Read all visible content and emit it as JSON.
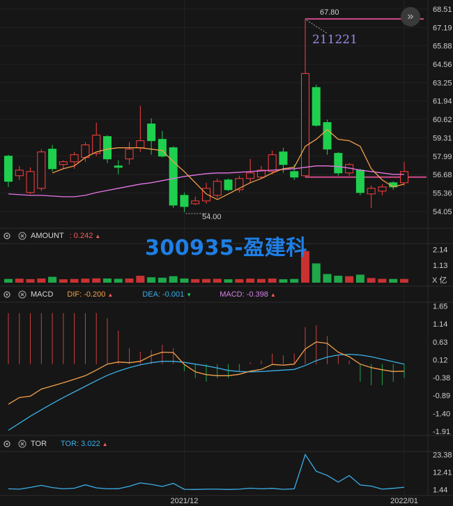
{
  "watermark": "300935-盈建科",
  "panels": {
    "amount": {
      "name": "AMOUNT",
      "value": ": 0.242",
      "unit": "X 亿"
    },
    "macd": {
      "name": "MACD",
      "dif": "DIF: -0.200",
      "dea": "DEA: -0.001",
      "macd": "MACD: -0.398"
    },
    "tor": {
      "name": "TOR",
      "value": "TOR: 3.022"
    }
  },
  "annotations": {
    "high_price": "67.80",
    "low_price": "54.00",
    "date_label": "211221"
  },
  "x_labels": [
    "2021/12",
    "2022/01"
  ],
  "icons": {
    "settings": "gear-icon",
    "close": "close-icon",
    "fast_forward": "double-chevron-right-icon"
  },
  "colors": {
    "up": "#ff4040",
    "down": "#1fd04f",
    "ma5": "#f5a04a",
    "ma20": "#e676e6",
    "dif": "#f5a04a",
    "dea": "#3bb0e8",
    "tor": "#3bb0e8",
    "ref_line": "#d04a8a"
  },
  "chart_data": [
    {
      "type": "candlestick",
      "title": "",
      "y_ticks": [
        68.51,
        67.19,
        65.88,
        64.56,
        63.25,
        61.94,
        60.62,
        59.31,
        57.99,
        56.68,
        55.36,
        54.05
      ],
      "ylim": [
        53.3,
        68.9
      ],
      "candles": [
        {
          "o": 58.0,
          "c": 56.2,
          "h": 58.1,
          "l": 55.8
        },
        {
          "o": 56.6,
          "c": 57.0,
          "h": 57.3,
          "l": 56.3
        },
        {
          "o": 55.4,
          "c": 56.9,
          "h": 57.2,
          "l": 55.3
        },
        {
          "o": 55.7,
          "c": 58.3,
          "h": 58.5,
          "l": 55.5
        },
        {
          "o": 58.5,
          "c": 57.1,
          "h": 58.8,
          "l": 56.9
        },
        {
          "o": 57.4,
          "c": 57.6,
          "h": 57.7,
          "l": 57.1
        },
        {
          "o": 57.6,
          "c": 58.1,
          "h": 58.3,
          "l": 57.1
        },
        {
          "o": 57.9,
          "c": 58.8,
          "h": 59.0,
          "l": 57.6
        },
        {
          "o": 58.2,
          "c": 59.5,
          "h": 60.4,
          "l": 58.0
        },
        {
          "o": 59.4,
          "c": 57.8,
          "h": 59.5,
          "l": 57.5
        },
        {
          "o": 57.3,
          "c": 57.2,
          "h": 57.7,
          "l": 56.7
        },
        {
          "o": 57.8,
          "c": 58.5,
          "h": 59.0,
          "l": 57.4
        },
        {
          "o": 58.6,
          "c": 59.1,
          "h": 61.6,
          "l": 58.3
        },
        {
          "o": 60.3,
          "c": 59.1,
          "h": 60.7,
          "l": 58.1
        },
        {
          "o": 59.2,
          "c": 58.0,
          "h": 59.8,
          "l": 57.9
        },
        {
          "o": 58.6,
          "c": 54.5,
          "h": 58.7,
          "l": 54.3
        },
        {
          "o": 55.2,
          "c": 54.4,
          "h": 55.4,
          "l": 54.0
        },
        {
          "o": 54.6,
          "c": 54.8,
          "h": 55.1,
          "l": 54.5
        },
        {
          "o": 54.8,
          "c": 55.7,
          "h": 56.1,
          "l": 54.6
        },
        {
          "o": 55.2,
          "c": 56.2,
          "h": 56.4,
          "l": 55.0
        },
        {
          "o": 56.3,
          "c": 55.6,
          "h": 56.4,
          "l": 55.5
        },
        {
          "o": 55.6,
          "c": 56.4,
          "h": 56.6,
          "l": 55.4
        },
        {
          "o": 56.4,
          "c": 56.8,
          "h": 57.8,
          "l": 56.1
        },
        {
          "o": 56.5,
          "c": 57.0,
          "h": 57.3,
          "l": 56.4
        },
        {
          "o": 56.9,
          "c": 58.1,
          "h": 58.4,
          "l": 56.7
        },
        {
          "o": 58.3,
          "c": 57.4,
          "h": 58.6,
          "l": 56.8
        },
        {
          "o": 56.9,
          "c": 56.5,
          "h": 57.4,
          "l": 56.3
        },
        {
          "o": 56.6,
          "c": 63.9,
          "h": 67.8,
          "l": 56.5
        },
        {
          "o": 62.9,
          "c": 60.2,
          "h": 63.1,
          "l": 60.1
        },
        {
          "o": 60.4,
          "c": 58.5,
          "h": 60.6,
          "l": 58.1
        },
        {
          "o": 58.2,
          "c": 56.8,
          "h": 58.3,
          "l": 56.6
        },
        {
          "o": 56.8,
          "c": 57.4,
          "h": 57.5,
          "l": 56.6
        },
        {
          "o": 57.0,
          "c": 55.4,
          "h": 57.1,
          "l": 55.2
        },
        {
          "o": 55.3,
          "c": 55.7,
          "h": 55.9,
          "l": 54.3
        },
        {
          "o": 55.5,
          "c": 55.8,
          "h": 56.0,
          "l": 55.2
        },
        {
          "o": 56.1,
          "c": 55.8,
          "h": 56.2,
          "l": 55.6
        },
        {
          "o": 56.1,
          "c": 56.9,
          "h": 57.6,
          "l": 55.9
        }
      ],
      "ma5": [
        null,
        null,
        null,
        null,
        56.8,
        57.1,
        57.3,
        57.9,
        58.3,
        58.5,
        58.6,
        58.6,
        58.6,
        58.5,
        58.4,
        57.6,
        56.9,
        56.1,
        55.3,
        54.9,
        55.3,
        55.7,
        56.1,
        56.4,
        56.8,
        57.1,
        57.2,
        58.7,
        59.2,
        59.9,
        59.2,
        59.1,
        58.7,
        57.1,
        56.3,
        55.8,
        56.0
      ],
      "ma20": [
        55.3,
        55.25,
        55.2,
        55.2,
        55.15,
        55.1,
        55.1,
        55.2,
        55.4,
        55.55,
        55.7,
        55.85,
        56.0,
        56.1,
        56.25,
        56.4,
        56.55,
        56.65,
        56.75,
        56.8,
        56.8,
        56.85,
        56.9,
        56.95,
        57.0,
        57.05,
        57.1,
        57.2,
        57.3,
        57.3,
        57.25,
        57.15,
        57.0,
        56.9,
        56.8,
        56.7,
        56.7
      ],
      "ref_lines": [
        67.8,
        56.5
      ]
    },
    {
      "type": "bar",
      "title": "AMOUNT",
      "y_ticks": [
        2.14,
        1.13
      ],
      "unit": "X 亿",
      "values": [
        0.24,
        0.26,
        0.23,
        0.27,
        0.38,
        0.22,
        0.24,
        0.26,
        0.28,
        0.27,
        0.25,
        0.27,
        0.45,
        0.35,
        0.32,
        0.42,
        0.27,
        0.23,
        0.24,
        0.25,
        0.22,
        0.23,
        0.26,
        0.24,
        0.27,
        0.22,
        0.24,
        2.05,
        1.25,
        0.56,
        0.45,
        0.42,
        0.52,
        0.3,
        0.25,
        0.24,
        0.24
      ]
    },
    {
      "type": "line",
      "title": "MACD",
      "y_ticks": [
        1.65,
        1.14,
        0.63,
        0.12,
        -0.38,
        -0.89,
        -1.4,
        -1.91
      ],
      "ylim": [
        -1.95,
        1.7
      ],
      "dif": [
        -1.14,
        -0.95,
        -0.91,
        -0.71,
        -0.62,
        -0.53,
        -0.43,
        -0.33,
        -0.17,
        -0.0,
        0.06,
        0.04,
        0.08,
        0.24,
        0.34,
        0.33,
        -0.01,
        -0.22,
        -0.3,
        -0.33,
        -0.33,
        -0.29,
        -0.2,
        -0.15,
        -0.01,
        -0.03,
        0.0,
        0.43,
        0.63,
        0.59,
        0.34,
        0.21,
        0.0,
        -0.1,
        -0.16,
        -0.21,
        -0.2
      ],
      "dea": [
        -1.88,
        -1.68,
        -1.48,
        -1.3,
        -1.12,
        -0.95,
        -0.79,
        -0.63,
        -0.47,
        -0.32,
        -0.2,
        -0.1,
        -0.02,
        0.04,
        0.08,
        0.08,
        0.05,
        0.0,
        -0.05,
        -0.11,
        -0.18,
        -0.21,
        -0.22,
        -0.21,
        -0.19,
        -0.17,
        -0.15,
        -0.04,
        0.1,
        0.2,
        0.26,
        0.28,
        0.26,
        0.21,
        0.14,
        0.07,
        -0.001
      ],
      "macd_bars": [
        1.45,
        1.45,
        1.45,
        1.45,
        1.45,
        1.45,
        1.45,
        1.45,
        1.45,
        1.3,
        0.95,
        0.45,
        0.35,
        0.4,
        0.55,
        0.45,
        -0.2,
        -0.4,
        -0.5,
        -0.4,
        -0.4,
        -0.2,
        0.05,
        0.1,
        0.3,
        0.25,
        0.3,
        1.05,
        1.1,
        0.8,
        0.25,
        0.1,
        -0.5,
        -0.6,
        -0.6,
        -0.5,
        -0.4
      ]
    },
    {
      "type": "line",
      "title": "TOR",
      "y_ticks": [
        23.38,
        12.41,
        1.44
      ],
      "ylim": [
        0,
        24
      ],
      "values": [
        2.0,
        1.8,
        2.9,
        4.2,
        2.8,
        2.0,
        2.4,
        4.5,
        2.6,
        2.0,
        2.1,
        3.6,
        5.7,
        4.8,
        3.5,
        5.4,
        1.7,
        1.6,
        1.8,
        1.8,
        1.6,
        1.8,
        2.4,
        2.0,
        2.3,
        1.7,
        2.0,
        23.4,
        13.0,
        10.4,
        6.2,
        10.3,
        4.4,
        3.7,
        1.8,
        2.3,
        3.0
      ]
    }
  ]
}
